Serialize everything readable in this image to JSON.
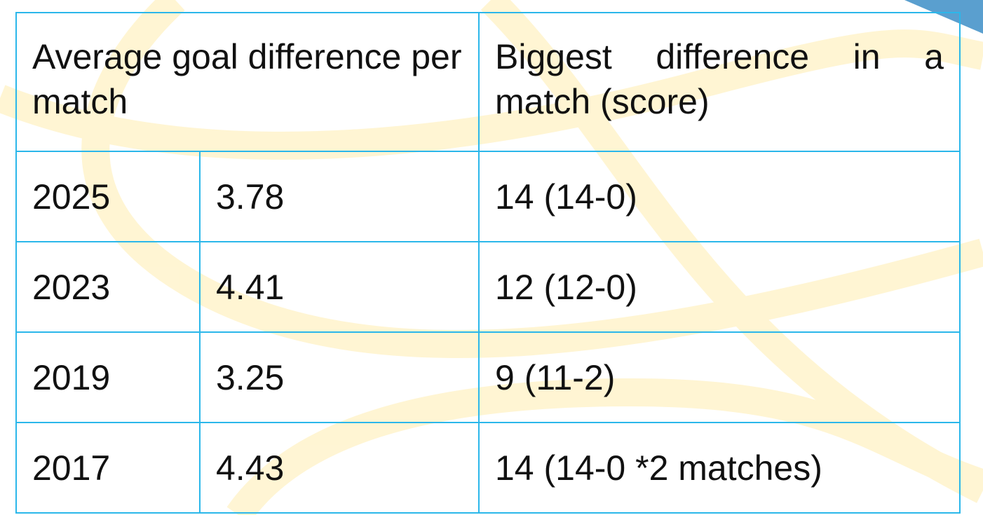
{
  "table": {
    "headers": [
      "Average goal difference per match",
      "Biggest difference in a match (score)"
    ],
    "rows": [
      {
        "year": "2025",
        "average": "3.78",
        "biggest": "14 (14-0)"
      },
      {
        "year": "2023",
        "average": "4.41",
        "biggest": "12 (12-0)"
      },
      {
        "year": "2019",
        "average": "3.25",
        "biggest": "9 (11-2)"
      },
      {
        "year": "2017",
        "average": "4.43",
        "biggest": "14 (14-0 *2 matches)"
      }
    ]
  },
  "colors": {
    "border": "#2bb7ea",
    "accent_triangle": "#5a9fcf",
    "background_curves": "#fff6d6"
  }
}
